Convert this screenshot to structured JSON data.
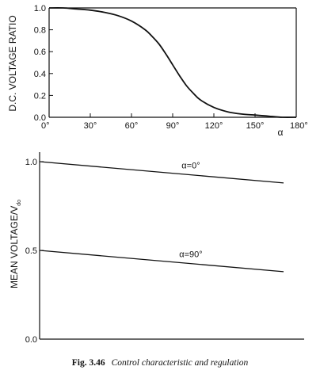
{
  "caption": {
    "number": "Fig. 3.46",
    "text": "Control characteristic and regulation"
  },
  "chart_data": [
    {
      "type": "line",
      "title": "",
      "xlabel": "α",
      "ylabel": "D.C. VOLTAGE RATIO",
      "xlim": [
        0,
        180
      ],
      "ylim": [
        0,
        1.0
      ],
      "x_ticks": [
        0,
        30,
        60,
        90,
        120,
        150,
        180
      ],
      "x_tick_labels": [
        "0°",
        "30°",
        "60°",
        "90°",
        "120°",
        "150°",
        "180°"
      ],
      "y_ticks": [
        0,
        0.2,
        0.4,
        0.6,
        0.8,
        1.0
      ],
      "y_tick_labels": [
        "0.0",
        "0.2",
        "0.4",
        "0.6",
        "0.8",
        "1.0"
      ],
      "grid": false,
      "series": [
        {
          "x": [
            0,
            10,
            20,
            30,
            40,
            50,
            60,
            70,
            75,
            80,
            85,
            90,
            95,
            100,
            105,
            110,
            120,
            130,
            140,
            150,
            160,
            170,
            180
          ],
          "values": [
            1.0,
            1.0,
            0.99,
            0.98,
            0.96,
            0.93,
            0.88,
            0.8,
            0.74,
            0.67,
            0.58,
            0.48,
            0.38,
            0.29,
            0.22,
            0.16,
            0.09,
            0.05,
            0.03,
            0.02,
            0.01,
            0.0,
            0.0
          ]
        }
      ]
    },
    {
      "type": "line",
      "title": "",
      "xlabel": "",
      "ylabel": "MEAN VOLTAGE/V",
      "ylabel_subscript": "do",
      "ylim": [
        0,
        1.0
      ],
      "y_ticks": [
        0,
        0.5,
        1.0
      ],
      "y_tick_labels": [
        "0.0",
        "0.5",
        "1.0"
      ],
      "xlim": [
        0,
        1
      ],
      "grid": false,
      "series": [
        {
          "name": "α=0°",
          "x": [
            0,
            1
          ],
          "values": [
            1.0,
            0.88
          ]
        },
        {
          "name": "α=90°",
          "x": [
            0,
            1
          ],
          "values": [
            0.5,
            0.38
          ]
        }
      ]
    }
  ]
}
